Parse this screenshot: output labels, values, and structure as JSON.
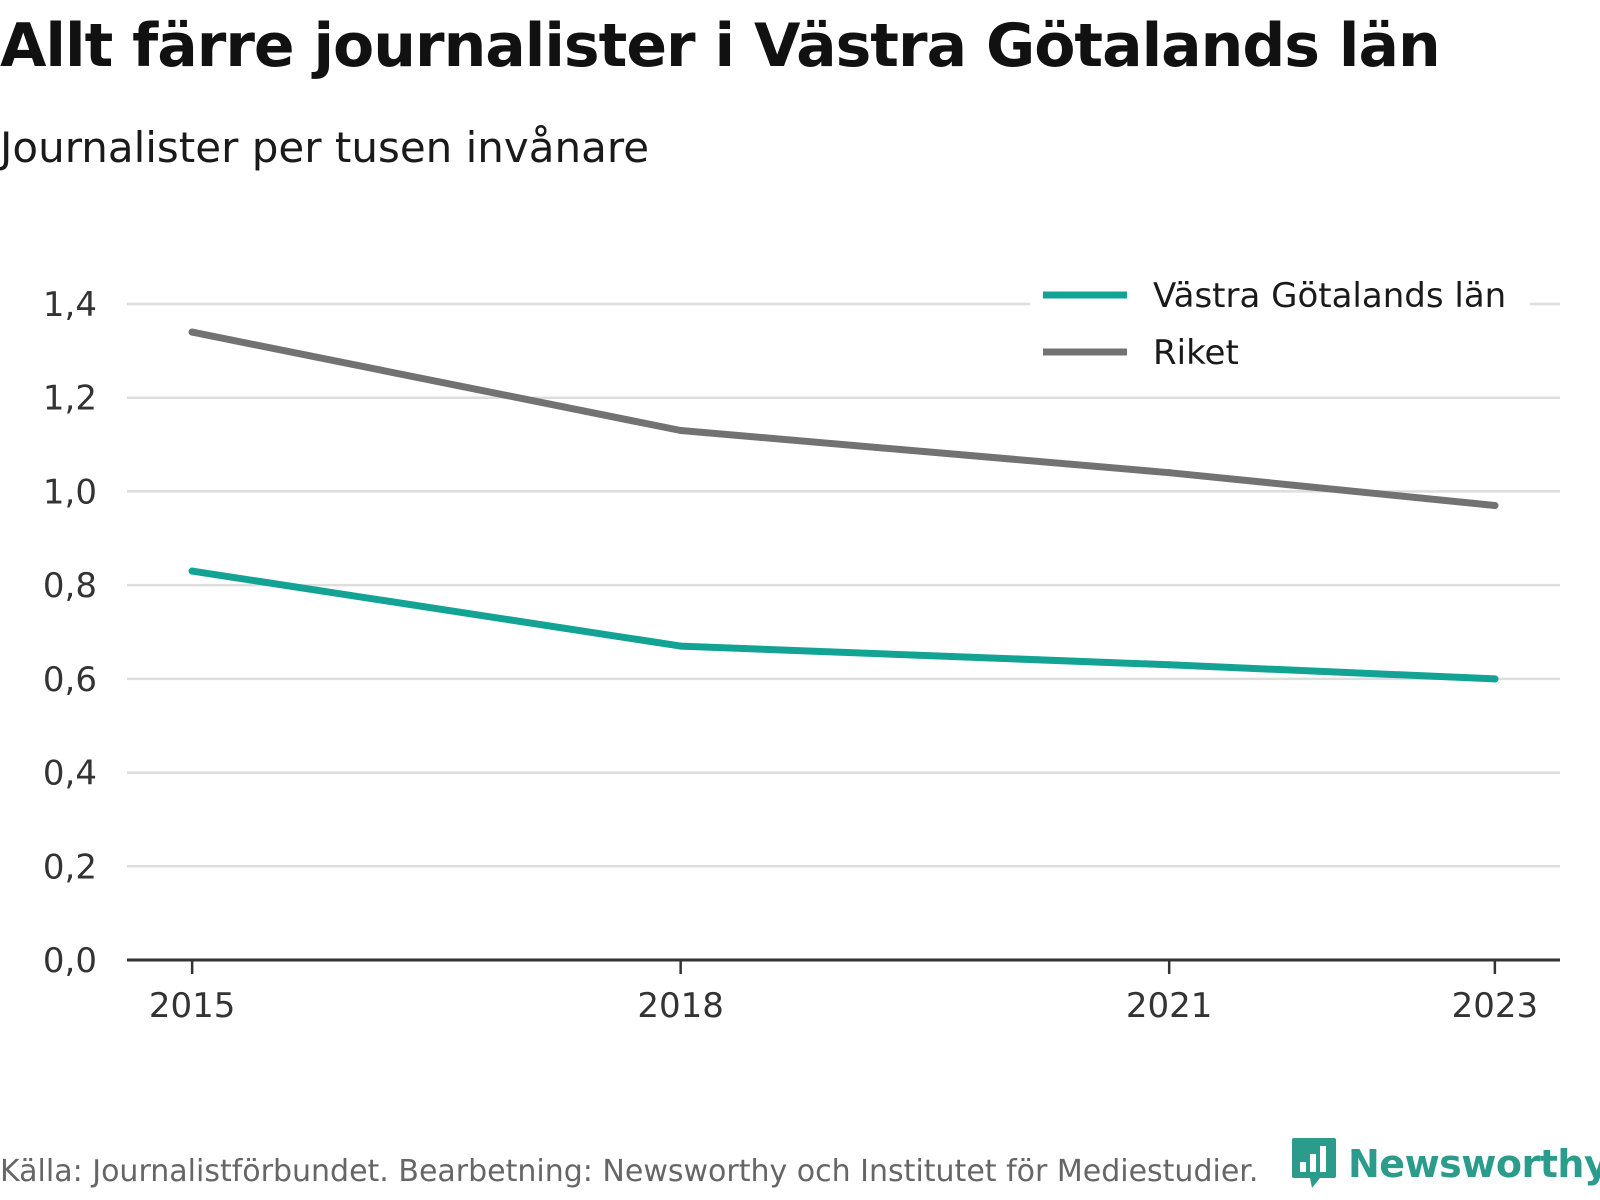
{
  "colors": {
    "vastra": "#12a395",
    "riket": "#727272",
    "grid": "#dddddd",
    "axis": "#333333",
    "brand": "#2b9c8c"
  },
  "footer": {
    "source": "Källa: Journalistförbundet. Bearbetning: Newsworthy och Institutet för Mediestudier.",
    "brand": "Newsworthy",
    "brand_icon": "bar-chart-speech-bubble-icon"
  },
  "chart_data": {
    "type": "line",
    "title": "Allt färre journalister i Västra Götalands län",
    "subtitle": "Journalister per tusen invånare",
    "x": [
      2015,
      2018,
      2021,
      2023
    ],
    "x_tick_labels": [
      "2015",
      "2018",
      "2021",
      "2023"
    ],
    "xlim": [
      2014.6,
      2023.4
    ],
    "ylim": [
      0,
      1.4
    ],
    "y_ticks": [
      0,
      0.2,
      0.4,
      0.6,
      0.8,
      1.0,
      1.2,
      1.4
    ],
    "y_tick_labels": [
      "0,0",
      "0,2",
      "0,4",
      "0,6",
      "0,8",
      "1,0",
      "1,2",
      "1,4"
    ],
    "grid": true,
    "legend_position": "top-right",
    "series": [
      {
        "name": "Västra Götalands län",
        "values": [
          0.83,
          0.67,
          0.63,
          0.6
        ],
        "color": "#12a395"
      },
      {
        "name": "Riket",
        "values": [
          1.34,
          1.13,
          1.04,
          0.97
        ],
        "color": "#727272"
      }
    ]
  }
}
